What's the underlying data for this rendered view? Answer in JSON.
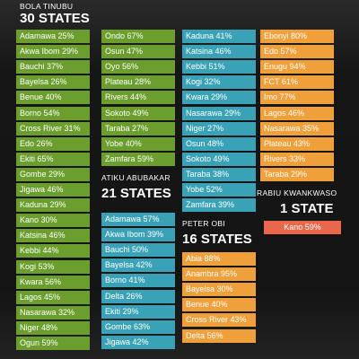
{
  "candidates": [
    {
      "name": "BOLA TINUBU",
      "count": "30 STATES",
      "columns": [
        [
          "Adamawa 25%",
          "Akwa Ibom 29%",
          "Bauchi 37%",
          "Bayelsa 26%",
          "Benue 40%",
          "Borno 54%",
          "Cross River 31%",
          "Edo 26%",
          "Ekiti 65%",
          "Gombe 29%",
          "Jigawa 46%",
          "Kaduna 29%",
          "Kano 30%",
          "Katsina 46%",
          "Kebbi 44%",
          "Kogi 53%",
          "Kwara 56%",
          "Lagos 45%",
          "Nasarawa 32%",
          "Niger 48%",
          "Ogun 59%"
        ],
        [
          "Ondo 67%",
          "Osun 47%",
          "Oyo 56%",
          "Plateau 28%",
          "Rivers 44%",
          "Sokoto 49%",
          "Taraba 27%",
          "Yobe 40%",
          "Zamfara 59%"
        ]
      ]
    },
    {
      "name": "ATIKU ABUBAKAR",
      "count": "21 STATES",
      "columns": [
        [
          "Adamawa 57%",
          "Akwa Ibom 39%",
          "Bauchi 50%",
          "Bayelsa 42%",
          "Borno 41%",
          "Delta 26%",
          "Ekiti 29%",
          "Gombe 63%",
          "Jigawa 42%"
        ],
        [
          "Kaduna 41%",
          "Katsina 46%",
          "Kebbi 51%",
          "Kogi 32%",
          "Kwara 29%",
          "Nasarawa 29%",
          "Niger 27%",
          "Osun 48%",
          "Sokoto 49%",
          "Taraba 38%",
          "Yobe 52%",
          "Zamfara 39%"
        ]
      ]
    },
    {
      "name": "PETER OBI",
      "count": "16 STATES",
      "columns": [
        [
          "Abia 88%",
          "Anambra 95%",
          "Bayelsa 30%",
          "Benue 40%",
          "Cross River 43%",
          "Delta 56%"
        ],
        [
          "Ebonyi 80%",
          "Edo 57%",
          "Enugu 94%",
          "FCT 61%",
          "Imo 77%",
          "Lagos 46%",
          "Nasarawa 35%",
          "Plateau 43%",
          "Rivers 33%",
          "Taraba 29%"
        ]
      ]
    },
    {
      "name": "RABIU KWANKWASO",
      "count": "1 STATE",
      "columns": [
        [
          "Kano 59%"
        ]
      ]
    }
  ]
}
